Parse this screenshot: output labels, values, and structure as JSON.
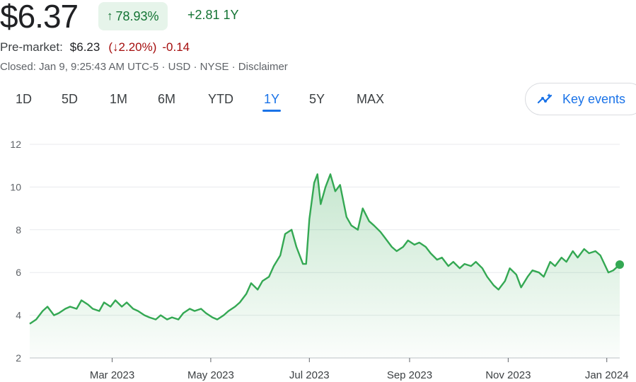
{
  "quote": {
    "price": "$6.37",
    "pct_arrow": "↑",
    "pct_change": "78.93%",
    "abs_change": "+2.81 1Y"
  },
  "premarket": {
    "label": "Pre-market:",
    "price": "$6.23",
    "pct_prefix": "(",
    "pct_arrow": "↓",
    "pct": "2.20%",
    "pct_suffix": ")",
    "abs": "-0.14"
  },
  "status_line": "Closed: Jan 9, 9:25:43 AM UTC-5 · USD · NYSE · Disclaimer",
  "tabs": [
    {
      "label": "1D"
    },
    {
      "label": "5D"
    },
    {
      "label": "1M"
    },
    {
      "label": "6M"
    },
    {
      "label": "YTD"
    },
    {
      "label": "1Y",
      "active": true
    },
    {
      "label": "5Y"
    },
    {
      "label": "MAX"
    }
  ],
  "key_events": {
    "label": "Key events",
    "icon": "key-events-icon"
  },
  "colors": {
    "up": "#137333",
    "down": "#a50e0e",
    "line": "#34a853",
    "accent": "#1a73e8"
  },
  "chart_data": {
    "type": "area",
    "x_ticks": [
      "Mar 2023",
      "May 2023",
      "Jul 2023",
      "Sep 2023",
      "Nov 2023",
      "Jan 2024"
    ],
    "y_ticks": [
      2,
      4,
      6,
      8,
      10,
      12
    ],
    "ylim": [
      2,
      12
    ],
    "x_domain": [
      "2023-01-09",
      "2024-01-09"
    ],
    "grid": true,
    "series": [
      {
        "points": [
          [
            "2023-01-09",
            3.6
          ],
          [
            "2023-01-13",
            3.8
          ],
          [
            "2023-01-17",
            4.2
          ],
          [
            "2023-01-20",
            4.4
          ],
          [
            "2023-01-24",
            4.0
          ],
          [
            "2023-01-27",
            4.1
          ],
          [
            "2023-01-31",
            4.3
          ],
          [
            "2023-02-03",
            4.4
          ],
          [
            "2023-02-07",
            4.3
          ],
          [
            "2023-02-10",
            4.7
          ],
          [
            "2023-02-14",
            4.5
          ],
          [
            "2023-02-17",
            4.3
          ],
          [
            "2023-02-21",
            4.2
          ],
          [
            "2023-02-24",
            4.6
          ],
          [
            "2023-02-28",
            4.4
          ],
          [
            "2023-03-03",
            4.7
          ],
          [
            "2023-03-07",
            4.4
          ],
          [
            "2023-03-10",
            4.6
          ],
          [
            "2023-03-14",
            4.3
          ],
          [
            "2023-03-17",
            4.2
          ],
          [
            "2023-03-21",
            4.0
          ],
          [
            "2023-03-24",
            3.9
          ],
          [
            "2023-03-28",
            3.8
          ],
          [
            "2023-03-31",
            4.0
          ],
          [
            "2023-04-04",
            3.8
          ],
          [
            "2023-04-07",
            3.9
          ],
          [
            "2023-04-11",
            3.8
          ],
          [
            "2023-04-14",
            4.1
          ],
          [
            "2023-04-18",
            4.3
          ],
          [
            "2023-04-21",
            4.2
          ],
          [
            "2023-04-25",
            4.3
          ],
          [
            "2023-04-28",
            4.1
          ],
          [
            "2023-05-02",
            3.9
          ],
          [
            "2023-05-05",
            3.8
          ],
          [
            "2023-05-09",
            4.0
          ],
          [
            "2023-05-12",
            4.2
          ],
          [
            "2023-05-16",
            4.4
          ],
          [
            "2023-05-19",
            4.6
          ],
          [
            "2023-05-23",
            5.0
          ],
          [
            "2023-05-26",
            5.5
          ],
          [
            "2023-05-30",
            5.2
          ],
          [
            "2023-06-02",
            5.6
          ],
          [
            "2023-06-06",
            5.8
          ],
          [
            "2023-06-09",
            6.3
          ],
          [
            "2023-06-13",
            6.8
          ],
          [
            "2023-06-16",
            7.8
          ],
          [
            "2023-06-20",
            8.0
          ],
          [
            "2023-06-23",
            7.2
          ],
          [
            "2023-06-27",
            6.4
          ],
          [
            "2023-06-29",
            6.4
          ],
          [
            "2023-07-01",
            8.5
          ],
          [
            "2023-07-04",
            10.2
          ],
          [
            "2023-07-06",
            10.6
          ],
          [
            "2023-07-08",
            9.2
          ],
          [
            "2023-07-11",
            10.0
          ],
          [
            "2023-07-14",
            10.6
          ],
          [
            "2023-07-17",
            9.8
          ],
          [
            "2023-07-20",
            10.1
          ],
          [
            "2023-07-24",
            8.6
          ],
          [
            "2023-07-27",
            8.2
          ],
          [
            "2023-07-31",
            8.0
          ],
          [
            "2023-08-03",
            9.0
          ],
          [
            "2023-08-07",
            8.4
          ],
          [
            "2023-08-10",
            8.2
          ],
          [
            "2023-08-14",
            7.9
          ],
          [
            "2023-08-17",
            7.6
          ],
          [
            "2023-08-21",
            7.2
          ],
          [
            "2023-08-24",
            7.0
          ],
          [
            "2023-08-28",
            7.2
          ],
          [
            "2023-08-31",
            7.5
          ],
          [
            "2023-09-04",
            7.3
          ],
          [
            "2023-09-07",
            7.4
          ],
          [
            "2023-09-11",
            7.2
          ],
          [
            "2023-09-14",
            6.9
          ],
          [
            "2023-09-18",
            6.6
          ],
          [
            "2023-09-21",
            6.7
          ],
          [
            "2023-09-25",
            6.3
          ],
          [
            "2023-09-28",
            6.5
          ],
          [
            "2023-10-02",
            6.2
          ],
          [
            "2023-10-05",
            6.4
          ],
          [
            "2023-10-09",
            6.3
          ],
          [
            "2023-10-12",
            6.5
          ],
          [
            "2023-10-16",
            6.2
          ],
          [
            "2023-10-19",
            5.8
          ],
          [
            "2023-10-23",
            5.4
          ],
          [
            "2023-10-26",
            5.2
          ],
          [
            "2023-10-30",
            5.6
          ],
          [
            "2023-11-02",
            6.2
          ],
          [
            "2023-11-06",
            5.9
          ],
          [
            "2023-11-09",
            5.3
          ],
          [
            "2023-11-13",
            5.8
          ],
          [
            "2023-11-16",
            6.1
          ],
          [
            "2023-11-20",
            6.0
          ],
          [
            "2023-11-23",
            5.8
          ],
          [
            "2023-11-27",
            6.5
          ],
          [
            "2023-11-30",
            6.3
          ],
          [
            "2023-12-04",
            6.7
          ],
          [
            "2023-12-07",
            6.5
          ],
          [
            "2023-12-11",
            7.0
          ],
          [
            "2023-12-14",
            6.7
          ],
          [
            "2023-12-18",
            7.1
          ],
          [
            "2023-12-21",
            6.9
          ],
          [
            "2023-12-25",
            7.0
          ],
          [
            "2023-12-28",
            6.8
          ],
          [
            "2024-01-02",
            6.0
          ],
          [
            "2024-01-05",
            6.1
          ],
          [
            "2024-01-09",
            6.37
          ]
        ]
      }
    ]
  }
}
